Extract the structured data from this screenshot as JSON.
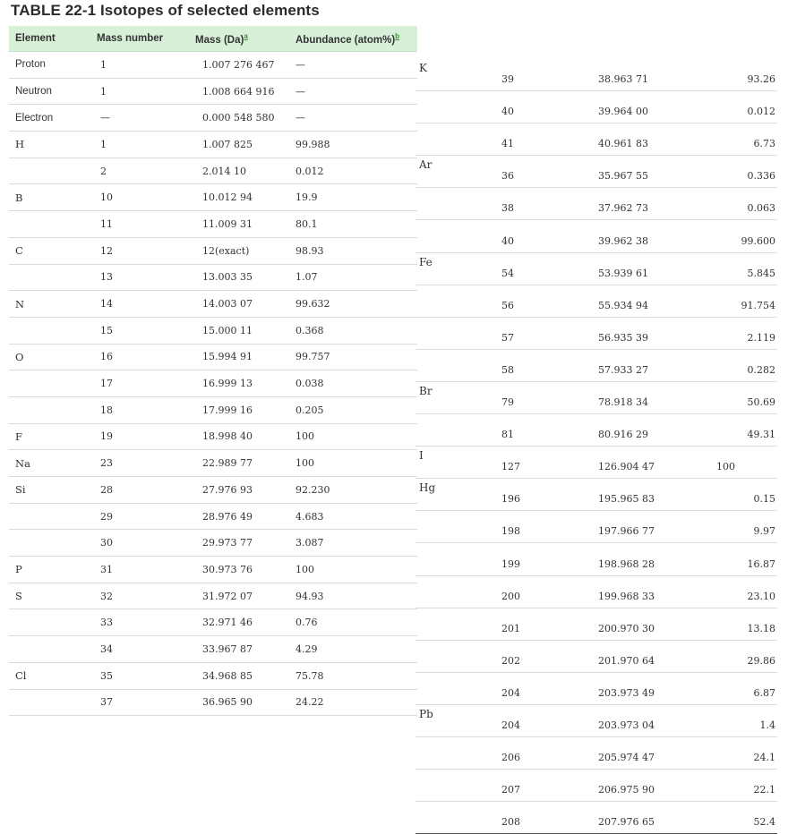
{
  "title": {
    "number": "TABLE 22-1",
    "text": "Isotopes of selected elements"
  },
  "headers": {
    "element": "Element",
    "mass_number": "Mass number",
    "mass": "Mass (Da)",
    "mass_note": "a",
    "abundance": "Abundance (atom%)",
    "abundance_note": "b"
  },
  "left_rows": [
    {
      "element": "Proton",
      "mass_number": "1",
      "mass": "1.007 276 467",
      "abundance": "—",
      "sans": true
    },
    {
      "element": "Neutron",
      "mass_number": "1",
      "mass": "1.008 664 916",
      "abundance": "—",
      "sans": true
    },
    {
      "element": "Electron",
      "mass_number": "—",
      "mass": "0.000 548 580",
      "abundance": "—",
      "sans": true
    },
    {
      "element": "H",
      "mass_number": "1",
      "mass": "1.007 825",
      "abundance": "99.988"
    },
    {
      "element": "",
      "mass_number": "2",
      "mass": "2.014 10",
      "abundance": "0.012"
    },
    {
      "element": "B",
      "mass_number": "10",
      "mass": "10.012 94",
      "abundance": "19.9"
    },
    {
      "element": "",
      "mass_number": "11",
      "mass": "11.009 31",
      "abundance": "80.1"
    },
    {
      "element": "C",
      "mass_number": "12",
      "mass": "12(exact)",
      "abundance": "98.93"
    },
    {
      "element": "",
      "mass_number": "13",
      "mass": "13.003 35",
      "abundance": "1.07"
    },
    {
      "element": "N",
      "mass_number": "14",
      "mass": "14.003 07",
      "abundance": "99.632"
    },
    {
      "element": "",
      "mass_number": "15",
      "mass": "15.000 11",
      "abundance": "0.368"
    },
    {
      "element": "O",
      "mass_number": "16",
      "mass": "15.994 91",
      "abundance": "99.757"
    },
    {
      "element": "",
      "mass_number": "17",
      "mass": "16.999 13",
      "abundance": "0.038"
    },
    {
      "element": "",
      "mass_number": "18",
      "mass": "17.999 16",
      "abundance": "0.205"
    },
    {
      "element": "F",
      "mass_number": "19",
      "mass": "18.998 40",
      "abundance": "100"
    },
    {
      "element": "Na",
      "mass_number": "23",
      "mass": "22.989 77",
      "abundance": "100"
    },
    {
      "element": "Si",
      "mass_number": "28",
      "mass": "27.976 93",
      "abundance": "92.230"
    },
    {
      "element": "",
      "mass_number": "29",
      "mass": "28.976 49",
      "abundance": "4.683"
    },
    {
      "element": "",
      "mass_number": "30",
      "mass": "29.973 77",
      "abundance": "3.087"
    },
    {
      "element": "P",
      "mass_number": "31",
      "mass": "30.973 76",
      "abundance": "100"
    },
    {
      "element": "S",
      "mass_number": "32",
      "mass": "31.972 07",
      "abundance": "94.93"
    },
    {
      "element": "",
      "mass_number": "33",
      "mass": "32.971 46",
      "abundance": "0.76"
    },
    {
      "element": "",
      "mass_number": "34",
      "mass": "33.967 87",
      "abundance": "4.29"
    },
    {
      "element": "Cl",
      "mass_number": "35",
      "mass": "34.968 85",
      "abundance": "75.78"
    },
    {
      "element": "",
      "mass_number": "37",
      "mass": "36.965 90",
      "abundance": "24.22"
    }
  ],
  "right_rows": [
    {
      "element": "K",
      "mass_number": "39",
      "mass": "38.963 71",
      "abundance": "93.26"
    },
    {
      "element": "",
      "mass_number": "40",
      "mass": "39.964 00",
      "abundance": "0.012"
    },
    {
      "element": "",
      "mass_number": "41",
      "mass": "40.961 83",
      "abundance": "6.73"
    },
    {
      "element": "Ar",
      "mass_number": "36",
      "mass": "35.967 55",
      "abundance": "0.336"
    },
    {
      "element": "",
      "mass_number": "38",
      "mass": "37.962 73",
      "abundance": "0.063"
    },
    {
      "element": "",
      "mass_number": "40",
      "mass": "39.962 38",
      "abundance": "99.600"
    },
    {
      "element": "Fe",
      "mass_number": "54",
      "mass": "53.939 61",
      "abundance": "5.845"
    },
    {
      "element": "",
      "mass_number": "56",
      "mass": "55.934 94",
      "abundance": "91.754"
    },
    {
      "element": "",
      "mass_number": "57",
      "mass": "56.935 39",
      "abundance": "2.119"
    },
    {
      "element": "",
      "mass_number": "58",
      "mass": "57.933 27",
      "abundance": "0.282"
    },
    {
      "element": "Br",
      "mass_number": "79",
      "mass": "78.918 34",
      "abundance": "50.69"
    },
    {
      "element": "",
      "mass_number": "81",
      "mass": "80.916 29",
      "abundance": "49.31"
    },
    {
      "element": "I",
      "mass_number": "127",
      "mass": "126.904 47",
      "abundance": "100",
      "ab_left": true
    },
    {
      "element": "Hg",
      "mass_number": "196",
      "mass": "195.965 83",
      "abundance": "0.15"
    },
    {
      "element": "",
      "mass_number": "198",
      "mass": "197.966 77",
      "abundance": "9.97"
    },
    {
      "element": "",
      "mass_number": "199",
      "mass": "198.968 28",
      "abundance": "16.87"
    },
    {
      "element": "",
      "mass_number": "200",
      "mass": "199.968 33",
      "abundance": "23.10"
    },
    {
      "element": "",
      "mass_number": "201",
      "mass": "200.970 30",
      "abundance": "13.18"
    },
    {
      "element": "",
      "mass_number": "202",
      "mass": "201.970 64",
      "abundance": "29.86"
    },
    {
      "element": "",
      "mass_number": "204",
      "mass": "203.973 49",
      "abundance": "6.87"
    },
    {
      "element": "Pb",
      "mass_number": "204",
      "mass": "203.973 04",
      "abundance": "1.4"
    },
    {
      "element": "",
      "mass_number": "206",
      "mass": "205.974 47",
      "abundance": "24.1"
    },
    {
      "element": "",
      "mass_number": "207",
      "mass": "206.975 90",
      "abundance": "22.1"
    },
    {
      "element": "",
      "mass_number": "208",
      "mass": "207.976 65",
      "abundance": "52.4"
    }
  ]
}
